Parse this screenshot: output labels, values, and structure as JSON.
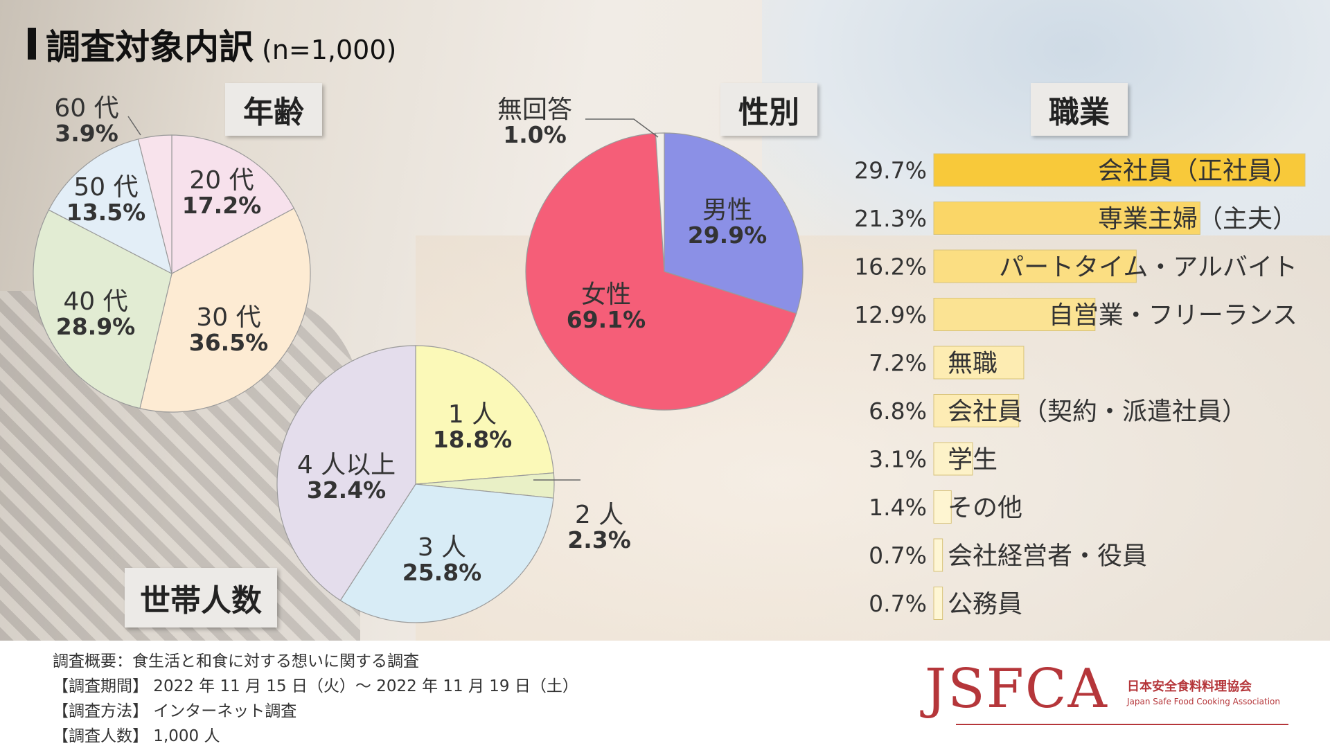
{
  "header": {
    "title": "調査対象内訳",
    "subtitle": "(n=1,000)"
  },
  "section_labels": {
    "age": "年齢",
    "gender": "性別",
    "occupation": "職業",
    "household": "世帯人数"
  },
  "chart_data": [
    {
      "type": "pie",
      "title": "年齢",
      "slices": [
        {
          "label": "20 代",
          "value": 17.2,
          "display": "17.2%",
          "color": "#f7e1ec"
        },
        {
          "label": "30 代",
          "value": 36.5,
          "display": "36.5%",
          "color": "#fdebd3"
        },
        {
          "label": "40 代",
          "value": 28.9,
          "display": "28.9%",
          "color": "#e2ecd3"
        },
        {
          "label": "50 代",
          "value": 13.5,
          "display": "13.5%",
          "color": "#e3eef7"
        },
        {
          "label": "60 代",
          "value": 3.9,
          "display": "3.9%",
          "color": "#f8e3ec"
        }
      ]
    },
    {
      "type": "pie",
      "title": "性別",
      "slices": [
        {
          "label": "男性",
          "value": 29.9,
          "display": "29.9%",
          "color": "#8b90e6"
        },
        {
          "label": "女性",
          "value": 69.1,
          "display": "69.1%",
          "color": "#f55e78"
        },
        {
          "label": "無回答",
          "value": 1.0,
          "display": "1.0%",
          "color": "#f2efe9"
        }
      ]
    },
    {
      "type": "pie",
      "title": "世帯人数",
      "slices": [
        {
          "label": "1 人",
          "value": 18.8,
          "display": "18.8%",
          "color": "#fbf9b8"
        },
        {
          "label": "2 人",
          "value": 2.3,
          "display": "2.3%",
          "color": "#e9f0c6"
        },
        {
          "label": "3 人",
          "value": 25.8,
          "display": "25.8%",
          "color": "#d8ecf6"
        },
        {
          "label": "4 人以上",
          "value": 32.4,
          "display": "32.4%",
          "color": "#e4ddec"
        }
      ]
    },
    {
      "type": "bar",
      "title": "職業",
      "orientation": "horizontal",
      "categories": [
        "会社員（正社員）",
        "専業主婦（主夫）",
        "パートタイム・アルバイト",
        "自営業・フリーランス",
        "無職",
        "会社員（契約・派遣社員）",
        "学生",
        "その他",
        "会社経営者・役員",
        "公務員"
      ],
      "values": [
        29.7,
        21.3,
        16.2,
        12.9,
        7.2,
        6.8,
        3.1,
        1.4,
        0.7,
        0.7
      ],
      "value_labels": [
        "29.7%",
        "21.3%",
        "16.2%",
        "12.9%",
        "7.2%",
        "6.8%",
        "3.1%",
        "1.4%",
        "0.7%",
        "0.7%"
      ],
      "color_scale": [
        "#f8c93a",
        "#fef7d8"
      ],
      "xlim": [
        0,
        29.7
      ]
    }
  ],
  "footer": {
    "lines": [
      "調査概要：食生活と和食に対する想いに関する調査",
      "【調査期間】 2022 年 11 月 15 日（火）～ 2022 年 11 月 19 日（土）",
      "【調査方法】 インターネット調査",
      "【調査人数】 1,000 人"
    ]
  },
  "logo": {
    "text": "JSFCA",
    "jp": "日本安全食料料理協会",
    "en": "Japan Safe Food Cooking Association",
    "color": "#b5363a"
  }
}
